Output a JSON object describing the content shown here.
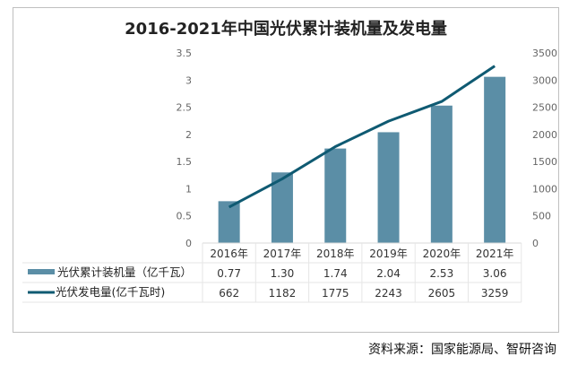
{
  "chart_data": {
    "type": "bar+line",
    "title": "2016-2021年中国光伏累计装机量及发电量",
    "categories": [
      "2016年",
      "2017年",
      "2018年",
      "2019年",
      "2020年",
      "2021年"
    ],
    "series": [
      {
        "name": "光伏累计装机量（亿千瓦）",
        "type": "bar",
        "axis": "left",
        "values": [
          0.77,
          1.3,
          1.74,
          2.04,
          2.53,
          3.06
        ],
        "labels": [
          "0.77",
          "1.30",
          "1.74",
          "2.04",
          "2.53",
          "3.06"
        ],
        "color": "#5b8ea6"
      },
      {
        "name": "光伏发电量(亿千瓦时)",
        "type": "line",
        "axis": "right",
        "values": [
          662,
          1182,
          1775,
          2243,
          2605,
          3259
        ],
        "labels": [
          "662",
          "1182",
          "1775",
          "2243",
          "2605",
          "3259"
        ],
        "color": "#0f5a72"
      }
    ],
    "left_axis": {
      "ylim": [
        0,
        3.5
      ],
      "ticks": [
        "0",
        "0.5",
        "1",
        "1.5",
        "2",
        "2.5",
        "3",
        "3.5"
      ]
    },
    "right_axis": {
      "ylim": [
        0,
        3500
      ],
      "ticks": [
        "0",
        "500",
        "1000",
        "1500",
        "2000",
        "2500",
        "3000",
        "3500"
      ]
    },
    "grid": false,
    "legend": "data-table"
  },
  "source": "资料来源：国家能源局、智研咨询"
}
